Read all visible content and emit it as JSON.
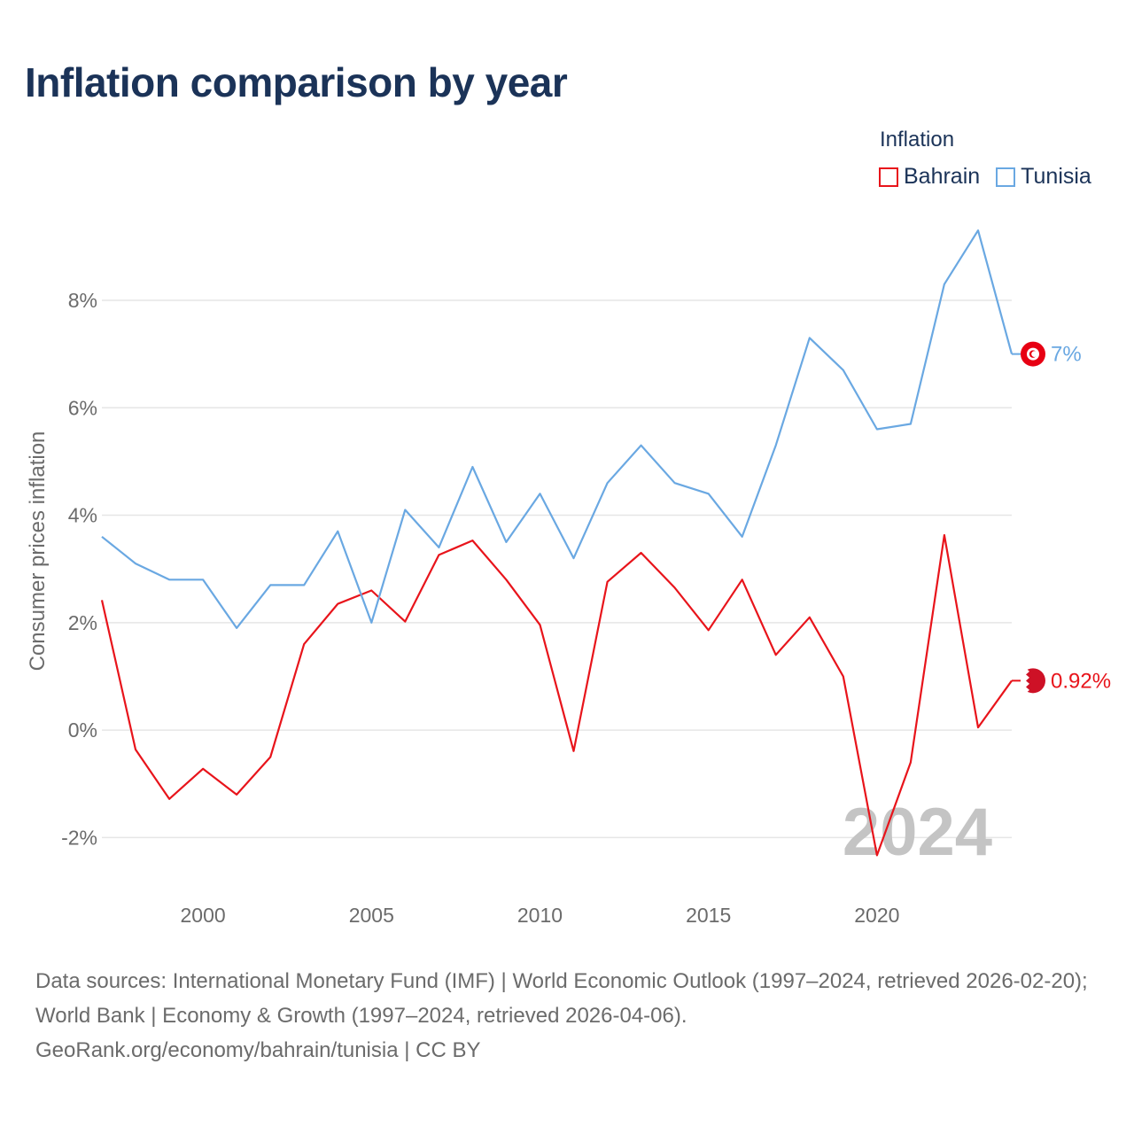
{
  "title": "Inflation comparison by year",
  "legend": {
    "title": "Inflation",
    "items": [
      {
        "label": "Bahrain",
        "color": "#e8141b"
      },
      {
        "label": "Tunisia",
        "color": "#6aa8e2"
      }
    ]
  },
  "watermark_year": "2024",
  "footer": {
    "sources": "Data sources: International Monetary Fund (IMF) | World Economic Outlook (1997–2024, retrieved 2026-02-20); World Bank | Economy & Growth (1997–2024, retrieved 2026-04-06).",
    "credit": "GeoRank.org/economy/bahrain/tunisia | CC BY"
  },
  "chart_data": {
    "type": "line",
    "title": "Inflation comparison by year",
    "xlabel": "",
    "ylabel": "Consumer prices inflation",
    "xlim": [
      1997,
      2024
    ],
    "ylim": [
      -2.9,
      9.5
    ],
    "x_ticks": [
      2000,
      2005,
      2010,
      2015,
      2020
    ],
    "y_ticks": [
      -2,
      0,
      2,
      4,
      6,
      8
    ],
    "y_tick_labels": [
      "-2%",
      "0%",
      "2%",
      "4%",
      "6%",
      "8%"
    ],
    "grid": true,
    "legend_position": "top-right",
    "x": [
      1997,
      1998,
      1999,
      2000,
      2001,
      2002,
      2003,
      2004,
      2005,
      2006,
      2007,
      2008,
      2009,
      2010,
      2011,
      2012,
      2013,
      2014,
      2015,
      2016,
      2017,
      2018,
      2019,
      2020,
      2021,
      2022,
      2023,
      2024
    ],
    "series": [
      {
        "name": "Bahrain",
        "color": "#e8141b",
        "end_label": "0.92%",
        "values": [
          2.42,
          -0.36,
          -1.28,
          -0.72,
          -1.2,
          -0.5,
          1.6,
          2.35,
          2.6,
          2.02,
          3.26,
          3.53,
          2.8,
          1.96,
          -0.39,
          2.76,
          3.3,
          2.65,
          1.86,
          2.8,
          1.4,
          2.1,
          1.0,
          -2.33,
          -0.6,
          3.63,
          0.05,
          0.92
        ]
      },
      {
        "name": "Tunisia",
        "color": "#6aa8e2",
        "end_label": "7%",
        "values": [
          3.6,
          3.1,
          2.8,
          2.8,
          1.9,
          2.7,
          2.7,
          3.7,
          2.0,
          4.1,
          3.4,
          4.9,
          3.5,
          4.4,
          3.2,
          4.6,
          5.3,
          4.6,
          4.4,
          3.6,
          5.3,
          7.3,
          6.7,
          5.6,
          5.7,
          8.3,
          9.3,
          7.0
        ]
      }
    ]
  }
}
